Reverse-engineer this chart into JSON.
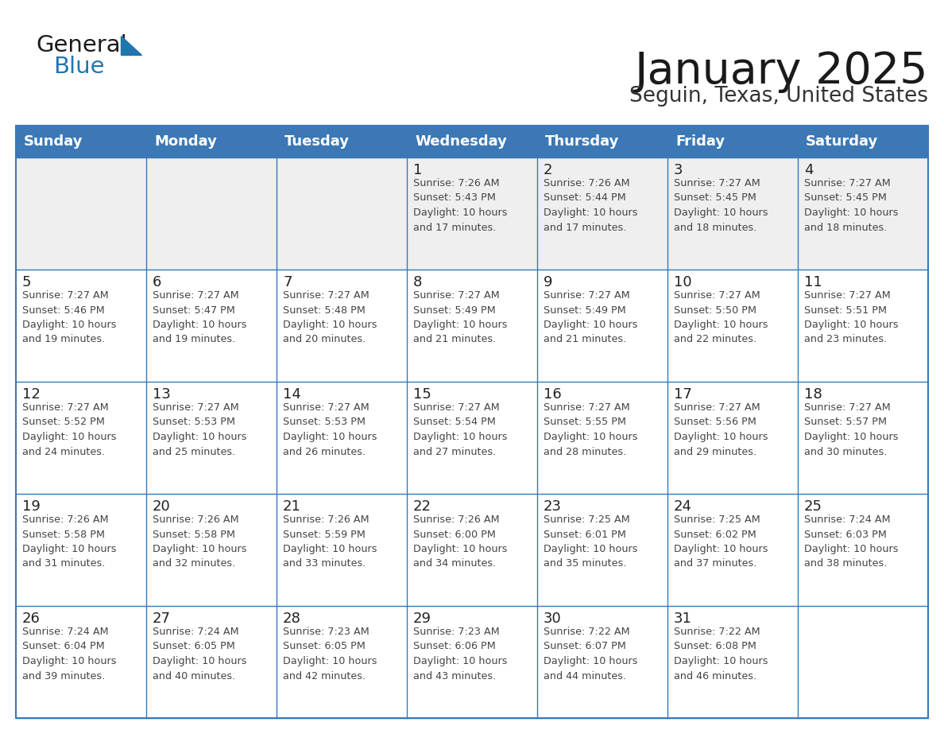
{
  "title": "January 2025",
  "subtitle": "Seguin, Texas, United States",
  "header_color": "#3b78b5",
  "header_text_color": "#FFFFFF",
  "border_color": "#3b78b5",
  "text_color": "#333333",
  "day_number_color": "#222222",
  "info_text_color": "#444444",
  "cell_bg_white": "#FFFFFF",
  "cell_bg_gray": "#EFEFEF",
  "days_of_week": [
    "Sunday",
    "Monday",
    "Tuesday",
    "Wednesday",
    "Thursday",
    "Friday",
    "Saturday"
  ],
  "calendar_data": [
    [
      {
        "day": "",
        "info": ""
      },
      {
        "day": "",
        "info": ""
      },
      {
        "day": "",
        "info": ""
      },
      {
        "day": "1",
        "info": "Sunrise: 7:26 AM\nSunset: 5:43 PM\nDaylight: 10 hours\nand 17 minutes."
      },
      {
        "day": "2",
        "info": "Sunrise: 7:26 AM\nSunset: 5:44 PM\nDaylight: 10 hours\nand 17 minutes."
      },
      {
        "day": "3",
        "info": "Sunrise: 7:27 AM\nSunset: 5:45 PM\nDaylight: 10 hours\nand 18 minutes."
      },
      {
        "day": "4",
        "info": "Sunrise: 7:27 AM\nSunset: 5:45 PM\nDaylight: 10 hours\nand 18 minutes."
      }
    ],
    [
      {
        "day": "5",
        "info": "Sunrise: 7:27 AM\nSunset: 5:46 PM\nDaylight: 10 hours\nand 19 minutes."
      },
      {
        "day": "6",
        "info": "Sunrise: 7:27 AM\nSunset: 5:47 PM\nDaylight: 10 hours\nand 19 minutes."
      },
      {
        "day": "7",
        "info": "Sunrise: 7:27 AM\nSunset: 5:48 PM\nDaylight: 10 hours\nand 20 minutes."
      },
      {
        "day": "8",
        "info": "Sunrise: 7:27 AM\nSunset: 5:49 PM\nDaylight: 10 hours\nand 21 minutes."
      },
      {
        "day": "9",
        "info": "Sunrise: 7:27 AM\nSunset: 5:49 PM\nDaylight: 10 hours\nand 21 minutes."
      },
      {
        "day": "10",
        "info": "Sunrise: 7:27 AM\nSunset: 5:50 PM\nDaylight: 10 hours\nand 22 minutes."
      },
      {
        "day": "11",
        "info": "Sunrise: 7:27 AM\nSunset: 5:51 PM\nDaylight: 10 hours\nand 23 minutes."
      }
    ],
    [
      {
        "day": "12",
        "info": "Sunrise: 7:27 AM\nSunset: 5:52 PM\nDaylight: 10 hours\nand 24 minutes."
      },
      {
        "day": "13",
        "info": "Sunrise: 7:27 AM\nSunset: 5:53 PM\nDaylight: 10 hours\nand 25 minutes."
      },
      {
        "day": "14",
        "info": "Sunrise: 7:27 AM\nSunset: 5:53 PM\nDaylight: 10 hours\nand 26 minutes."
      },
      {
        "day": "15",
        "info": "Sunrise: 7:27 AM\nSunset: 5:54 PM\nDaylight: 10 hours\nand 27 minutes."
      },
      {
        "day": "16",
        "info": "Sunrise: 7:27 AM\nSunset: 5:55 PM\nDaylight: 10 hours\nand 28 minutes."
      },
      {
        "day": "17",
        "info": "Sunrise: 7:27 AM\nSunset: 5:56 PM\nDaylight: 10 hours\nand 29 minutes."
      },
      {
        "day": "18",
        "info": "Sunrise: 7:27 AM\nSunset: 5:57 PM\nDaylight: 10 hours\nand 30 minutes."
      }
    ],
    [
      {
        "day": "19",
        "info": "Sunrise: 7:26 AM\nSunset: 5:58 PM\nDaylight: 10 hours\nand 31 minutes."
      },
      {
        "day": "20",
        "info": "Sunrise: 7:26 AM\nSunset: 5:58 PM\nDaylight: 10 hours\nand 32 minutes."
      },
      {
        "day": "21",
        "info": "Sunrise: 7:26 AM\nSunset: 5:59 PM\nDaylight: 10 hours\nand 33 minutes."
      },
      {
        "day": "22",
        "info": "Sunrise: 7:26 AM\nSunset: 6:00 PM\nDaylight: 10 hours\nand 34 minutes."
      },
      {
        "day": "23",
        "info": "Sunrise: 7:25 AM\nSunset: 6:01 PM\nDaylight: 10 hours\nand 35 minutes."
      },
      {
        "day": "24",
        "info": "Sunrise: 7:25 AM\nSunset: 6:02 PM\nDaylight: 10 hours\nand 37 minutes."
      },
      {
        "day": "25",
        "info": "Sunrise: 7:24 AM\nSunset: 6:03 PM\nDaylight: 10 hours\nand 38 minutes."
      }
    ],
    [
      {
        "day": "26",
        "info": "Sunrise: 7:24 AM\nSunset: 6:04 PM\nDaylight: 10 hours\nand 39 minutes."
      },
      {
        "day": "27",
        "info": "Sunrise: 7:24 AM\nSunset: 6:05 PM\nDaylight: 10 hours\nand 40 minutes."
      },
      {
        "day": "28",
        "info": "Sunrise: 7:23 AM\nSunset: 6:05 PM\nDaylight: 10 hours\nand 42 minutes."
      },
      {
        "day": "29",
        "info": "Sunrise: 7:23 AM\nSunset: 6:06 PM\nDaylight: 10 hours\nand 43 minutes."
      },
      {
        "day": "30",
        "info": "Sunrise: 7:22 AM\nSunset: 6:07 PM\nDaylight: 10 hours\nand 44 minutes."
      },
      {
        "day": "31",
        "info": "Sunrise: 7:22 AM\nSunset: 6:08 PM\nDaylight: 10 hours\nand 46 minutes."
      },
      {
        "day": "",
        "info": ""
      }
    ]
  ],
  "logo_color_general": "#1a1a1a",
  "logo_color_blue": "#2176AE",
  "logo_triangle_color": "#2176AE",
  "title_color": "#1a1a1a",
  "subtitle_color": "#333333"
}
